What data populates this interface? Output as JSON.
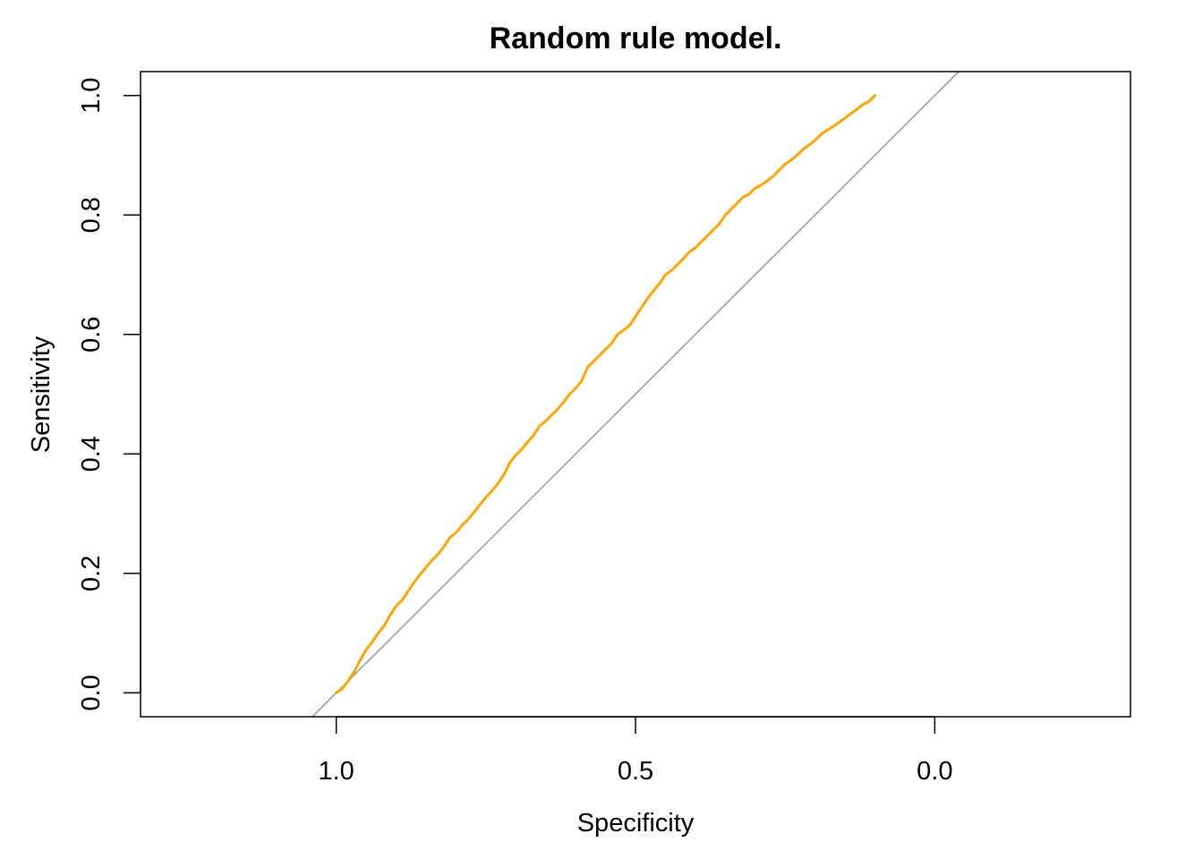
{
  "chart_data": {
    "type": "line",
    "title": "Random rule model.",
    "xlabel": "Specificity",
    "ylabel": "Sensitivity",
    "x_reversed": true,
    "xlim": [
      1.327,
      -0.327
    ],
    "ylim": [
      -0.04,
      1.04
    ],
    "xticks": [
      {
        "value": 1.0,
        "label": "1.0"
      },
      {
        "value": 0.5,
        "label": "0.5"
      },
      {
        "value": 0.0,
        "label": "0.0"
      }
    ],
    "yticks": [
      {
        "value": 0.0,
        "label": "0.0"
      },
      {
        "value": 0.2,
        "label": "0.2"
      },
      {
        "value": 0.4,
        "label": "0.4"
      },
      {
        "value": 0.6,
        "label": "0.6"
      },
      {
        "value": 0.8,
        "label": "0.8"
      },
      {
        "value": 1.0,
        "label": "1.0"
      }
    ],
    "reference_line": {
      "color": "#999999",
      "description_points": [
        [
          1.0,
          0.0
        ],
        [
          0.0,
          1.0
        ]
      ]
    },
    "series": [
      {
        "color": "#FFA500",
        "points": [
          [
            1.0,
            0.0
          ],
          [
            0.99,
            0.007
          ],
          [
            0.98,
            0.02
          ],
          [
            0.97,
            0.035
          ],
          [
            0.96,
            0.055
          ],
          [
            0.95,
            0.072
          ],
          [
            0.94,
            0.085
          ],
          [
            0.93,
            0.1
          ],
          [
            0.92,
            0.112
          ],
          [
            0.91,
            0.13
          ],
          [
            0.9,
            0.145
          ],
          [
            0.89,
            0.155
          ],
          [
            0.88,
            0.17
          ],
          [
            0.87,
            0.185
          ],
          [
            0.86,
            0.198
          ],
          [
            0.85,
            0.21
          ],
          [
            0.84,
            0.222
          ],
          [
            0.83,
            0.232
          ],
          [
            0.82,
            0.245
          ],
          [
            0.81,
            0.26
          ],
          [
            0.8,
            0.268
          ],
          [
            0.79,
            0.28
          ],
          [
            0.78,
            0.29
          ],
          [
            0.77,
            0.302
          ],
          [
            0.76,
            0.315
          ],
          [
            0.75,
            0.327
          ],
          [
            0.74,
            0.338
          ],
          [
            0.73,
            0.35
          ],
          [
            0.72,
            0.365
          ],
          [
            0.71,
            0.385
          ],
          [
            0.7,
            0.398
          ],
          [
            0.69,
            0.408
          ],
          [
            0.68,
            0.42
          ],
          [
            0.67,
            0.432
          ],
          [
            0.66,
            0.447
          ],
          [
            0.65,
            0.455
          ],
          [
            0.64,
            0.465
          ],
          [
            0.63,
            0.475
          ],
          [
            0.62,
            0.487
          ],
          [
            0.61,
            0.5
          ],
          [
            0.6,
            0.51
          ],
          [
            0.59,
            0.522
          ],
          [
            0.58,
            0.545
          ],
          [
            0.57,
            0.555
          ],
          [
            0.56,
            0.565
          ],
          [
            0.55,
            0.575
          ],
          [
            0.54,
            0.585
          ],
          [
            0.53,
            0.6
          ],
          [
            0.52,
            0.607
          ],
          [
            0.51,
            0.615
          ],
          [
            0.5,
            0.63
          ],
          [
            0.49,
            0.645
          ],
          [
            0.48,
            0.66
          ],
          [
            0.47,
            0.673
          ],
          [
            0.46,
            0.685
          ],
          [
            0.45,
            0.7
          ],
          [
            0.44,
            0.707
          ],
          [
            0.43,
            0.717
          ],
          [
            0.42,
            0.727
          ],
          [
            0.41,
            0.738
          ],
          [
            0.4,
            0.745
          ],
          [
            0.39,
            0.755
          ],
          [
            0.38,
            0.765
          ],
          [
            0.37,
            0.775
          ],
          [
            0.36,
            0.785
          ],
          [
            0.35,
            0.8
          ],
          [
            0.34,
            0.81
          ],
          [
            0.33,
            0.82
          ],
          [
            0.32,
            0.83
          ],
          [
            0.31,
            0.835
          ],
          [
            0.3,
            0.845
          ],
          [
            0.29,
            0.85
          ],
          [
            0.28,
            0.857
          ],
          [
            0.27,
            0.865
          ],
          [
            0.26,
            0.875
          ],
          [
            0.25,
            0.885
          ],
          [
            0.24,
            0.892
          ],
          [
            0.23,
            0.9
          ],
          [
            0.22,
            0.91
          ],
          [
            0.21,
            0.917
          ],
          [
            0.2,
            0.925
          ],
          [
            0.19,
            0.935
          ],
          [
            0.18,
            0.942
          ],
          [
            0.17,
            0.948
          ],
          [
            0.16,
            0.955
          ],
          [
            0.15,
            0.962
          ],
          [
            0.14,
            0.97
          ],
          [
            0.13,
            0.977
          ],
          [
            0.12,
            0.985
          ],
          [
            0.11,
            0.99
          ],
          [
            0.1,
            1.0
          ]
        ]
      }
    ],
    "grid": false,
    "legend": "none"
  }
}
